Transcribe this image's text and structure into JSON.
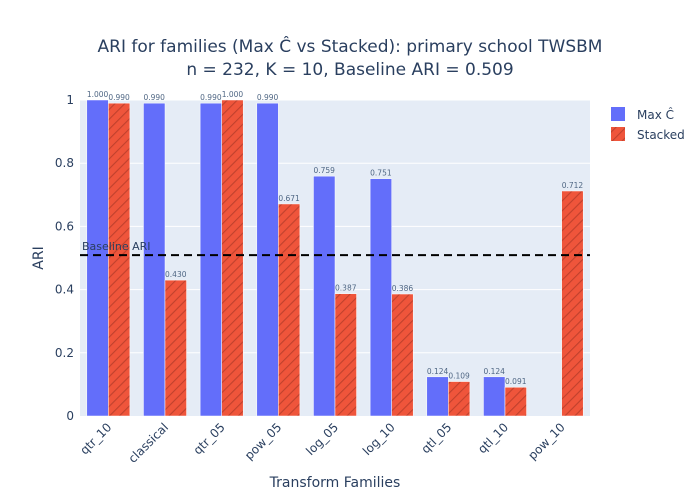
{
  "chart_data": {
    "type": "bar",
    "title": "ARI for families (Max Ĉ vs Stacked): primary school TWSBM",
    "subtitle": "n = 232, K = 10, Baseline ARI = 0.509",
    "xlabel": "Transform Families",
    "ylabel": "ARI",
    "ylim": [
      0,
      1
    ],
    "y_ticks": [
      0,
      0.2,
      0.4,
      0.6,
      0.8,
      1
    ],
    "y_tick_labels": [
      "0",
      "0.2",
      "0.4",
      "0.6",
      "0.8",
      "1"
    ],
    "categories": [
      "qtr_10",
      "classical",
      "qtr_05",
      "pow_05",
      "log_05",
      "log_10",
      "qtl_05",
      "qtl_10",
      "pow_10"
    ],
    "series": [
      {
        "name": "Max Ĉ",
        "color": "#636efa",
        "pattern": "solid",
        "values": [
          1.0,
          0.99,
          0.99,
          0.99,
          0.759,
          0.751,
          0.124,
          0.124,
          null
        ],
        "labels": [
          "1.000",
          "0.990",
          "0.990",
          "0.990",
          "0.759",
          "0.751",
          "0.124",
          "0.124",
          ""
        ]
      },
      {
        "name": "Stacked",
        "color": "#ef553b",
        "pattern": "diagonal-hatch",
        "values": [
          0.99,
          0.43,
          1.0,
          0.671,
          0.387,
          0.386,
          0.109,
          0.091,
          0.712
        ],
        "labels": [
          "0.990",
          "0.430",
          "1.000",
          "0.671",
          "0.387",
          "0.386",
          "0.109",
          "0.091",
          "0.712"
        ]
      }
    ],
    "baseline": {
      "value": 0.509,
      "label": "Baseline ARI",
      "style": "dashed",
      "color": "#000000"
    },
    "legend_position": "top-right",
    "grid": true,
    "plot_background": "#e5ecf6"
  }
}
